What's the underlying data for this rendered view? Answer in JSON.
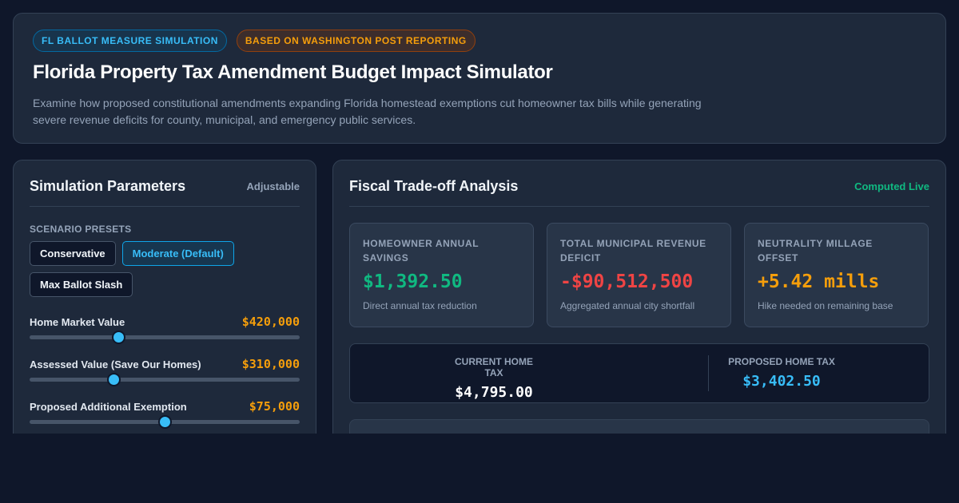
{
  "header": {
    "badges": [
      "FL BALLOT MEASURE SIMULATION",
      "BASED ON WASHINGTON POST REPORTING"
    ],
    "title": "Florida Property Tax Amendment Budget Impact Simulator",
    "description": "Examine how proposed constitutional amendments expanding Florida homestead exemptions cut homeowner tax bills while generating severe revenue deficits for county, municipal, and emergency public services."
  },
  "params_panel": {
    "title": "Simulation Parameters",
    "tag": "Adjustable",
    "presets_label": "SCENARIO PRESETS",
    "presets": [
      {
        "label": "Conservative",
        "active": false
      },
      {
        "label": "Moderate (Default)",
        "active": true
      },
      {
        "label": "Max Ballot Slash",
        "active": false
      }
    ],
    "sliders": [
      {
        "label": "Home Market Value",
        "value": "$420,000",
        "fraction": 0.328
      },
      {
        "label": "Assessed Value (Save Our Homes)",
        "value": "$310,000",
        "fraction": 0.311
      },
      {
        "label": "Proposed Additional Exemption",
        "value": "$75,000",
        "fraction": 0.5
      }
    ]
  },
  "analysis_panel": {
    "title": "Fiscal Trade-off Analysis",
    "tag": "Computed Live",
    "stats": [
      {
        "label": "HOMEOWNER ANNUAL SAVINGS",
        "value": "$1,392.50",
        "note": "Direct annual tax reduction",
        "color": "#10b981"
      },
      {
        "label": "TOTAL MUNICIPAL REVENUE DEFICIT",
        "value": "-$90,512,500",
        "note": "Aggregated annual city shortfall",
        "color": "#ef4444"
      },
      {
        "label": "NEUTRALITY MILLAGE OFFSET",
        "value": "+5.42 mills",
        "note": "Hike needed on remaining base",
        "color": "#f59e0b"
      }
    ],
    "comparison": {
      "current_label": "CURRENT HOME TAX",
      "current_value": "$4,795.00",
      "proposed_label": "PROPOSED HOME TAX",
      "proposed_value": "$3,402.50"
    }
  }
}
